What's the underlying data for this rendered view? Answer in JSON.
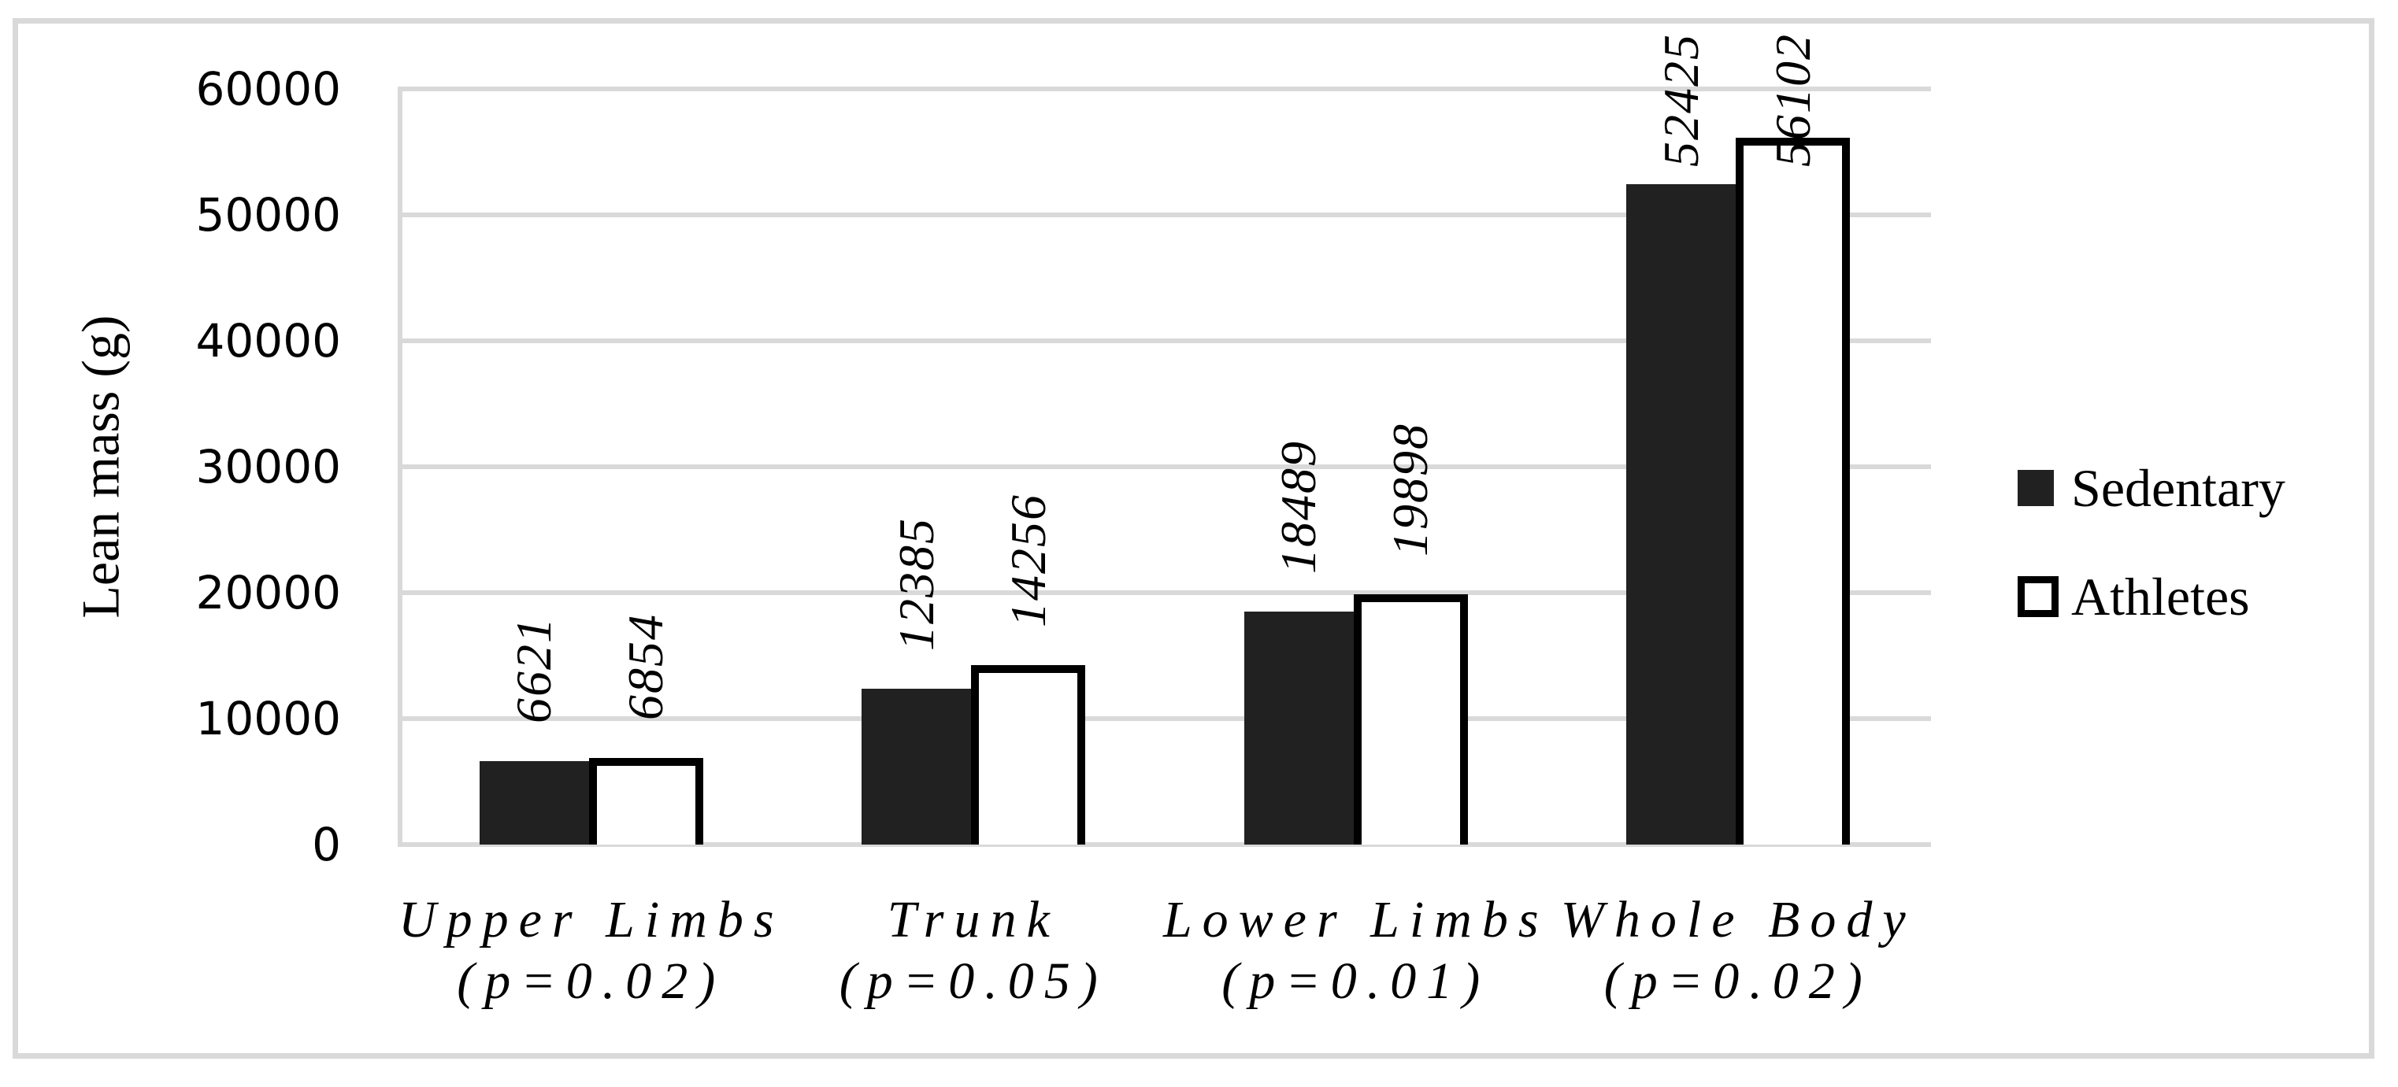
{
  "figure": {
    "background": "#ffffff",
    "border_color": "#d9d9d9"
  },
  "chart_data": {
    "type": "bar",
    "title": "",
    "xlabel": "",
    "ylabel": "Lean mass (g)",
    "ylim": [
      0,
      60000
    ],
    "ytick_step": 10000,
    "ytick_labels": [
      "0",
      "10000",
      "20000",
      "30000",
      "40000",
      "50000",
      "60000"
    ],
    "grid": true,
    "grid_color": "#d9d9d9",
    "axis_color": "#d9d9d9",
    "legend_position": "right",
    "value_labels_style": "rotated-90-italic-above-bars",
    "categories": [
      {
        "line1": "Upper Limbs",
        "line2": "(p=0.02)"
      },
      {
        "line1": "Trunk",
        "line2": "(p=0.05)"
      },
      {
        "line1": "Lower Limbs",
        "line2": "(p=0.01)"
      },
      {
        "line1": "Whole Body",
        "line2": "(p=0.02)"
      }
    ],
    "series": [
      {
        "name": "Sedentary",
        "fill": "#212121",
        "border": "#212121",
        "values": [
          6621,
          12385,
          18489,
          52425
        ]
      },
      {
        "name": "Athletes",
        "fill": "#ffffff",
        "border": "#000000",
        "values": [
          6854,
          14256,
          19898,
          56102
        ]
      }
    ]
  }
}
